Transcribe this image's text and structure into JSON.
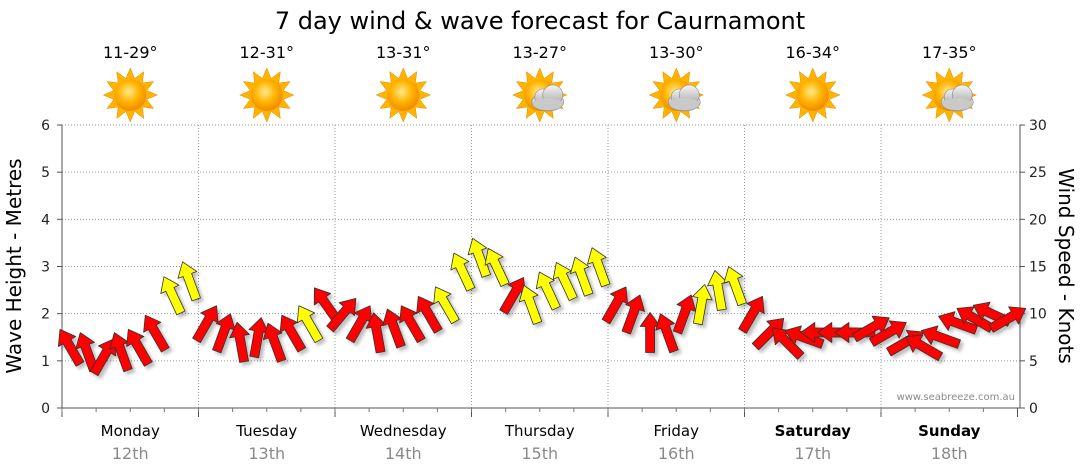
{
  "chart_data": {
    "type": "line",
    "title": "7 day wind & wave forecast for Caurnamont",
    "ylabel_left": "Wave Height - Metres",
    "ylabel_right": "Wind Speed - Knots",
    "left_ylim": [
      0,
      6
    ],
    "left_ticks": [
      "0",
      "1",
      "2",
      "3",
      "4",
      "5",
      "6"
    ],
    "right_ylim": [
      0,
      30
    ],
    "right_ticks": [
      "0",
      "5",
      "10",
      "15",
      "20",
      "25",
      "30"
    ],
    "grid": "dotted",
    "days": [
      {
        "name": "Monday",
        "date": "12th",
        "temp": "11-29°",
        "weather": "sunny-icon",
        "bold": false
      },
      {
        "name": "Tuesday",
        "date": "13th",
        "temp": "12-31°",
        "weather": "sunny-icon",
        "bold": false
      },
      {
        "name": "Wednesday",
        "date": "14th",
        "temp": "13-31°",
        "weather": "sunny-icon",
        "bold": false
      },
      {
        "name": "Thursday",
        "date": "15th",
        "temp": "13-27°",
        "weather": "partly-cloudy-icon",
        "bold": false
      },
      {
        "name": "Friday",
        "date": "16th",
        "temp": "13-30°",
        "weather": "partly-cloudy-icon",
        "bold": false
      },
      {
        "name": "Saturday",
        "date": "17th",
        "temp": "16-34°",
        "weather": "sunny-icon",
        "bold": true
      },
      {
        "name": "Sunday",
        "date": "18th",
        "temp": "17-35°",
        "weather": "partly-cloudy-icon",
        "bold": true
      }
    ],
    "wind_series": {
      "units": "knots",
      "points_per_day": 8,
      "x_day_fraction": [
        0.0,
        0.125,
        0.25,
        0.375,
        0.5,
        0.625,
        0.75,
        0.875,
        1.0,
        1.125,
        1.25,
        1.375,
        1.5,
        1.625,
        1.75,
        1.875,
        2.0,
        2.125,
        2.25,
        2.375,
        2.5,
        2.625,
        2.75,
        2.875,
        3.0,
        3.125,
        3.25,
        3.375,
        3.5,
        3.625,
        3.75,
        3.875,
        4.0,
        4.125,
        4.25,
        4.375,
        4.5,
        4.625,
        4.75,
        4.875,
        5.0,
        5.125,
        5.25,
        5.375,
        5.5,
        5.625,
        5.75,
        5.875,
        6.0,
        6.125,
        6.25,
        6.375,
        6.5,
        6.625,
        6.75,
        6.875
      ],
      "speed": [
        6.5,
        6,
        5.5,
        6,
        6.5,
        8,
        12,
        13.5,
        9,
        8,
        7,
        7.5,
        7,
        8,
        9,
        11,
        10,
        9,
        8,
        8.5,
        9,
        10,
        11,
        14.5,
        16,
        15,
        12,
        11,
        12.5,
        13.5,
        14,
        15,
        11,
        10,
        8,
        8,
        10,
        11,
        12.5,
        13,
        10,
        8,
        7,
        7.5,
        8,
        8,
        8,
        8.5,
        8,
        7,
        6.5,
        7.5,
        9,
        9.5,
        10,
        9.5
      ],
      "direction_deg": [
        30,
        20,
        330,
        20,
        30,
        30,
        25,
        20,
        330,
        340,
        10,
        350,
        20,
        30,
        30,
        35,
        320,
        330,
        10,
        20,
        30,
        30,
        30,
        25,
        20,
        25,
        330,
        20,
        25,
        25,
        20,
        20,
        330,
        340,
        0,
        20,
        340,
        350,
        10,
        20,
        330,
        315,
        45,
        70,
        90,
        90,
        90,
        300,
        300,
        300,
        60,
        70,
        70,
        60,
        65,
        300
      ],
      "color": [
        "red",
        "red",
        "red",
        "red",
        "red",
        "red",
        "yellow",
        "yellow",
        "red",
        "red",
        "red",
        "red",
        "red",
        "red",
        "yellow",
        "red",
        "red",
        "red",
        "red",
        "red",
        "red",
        "red",
        "yellow",
        "yellow",
        "yellow",
        "yellow",
        "red",
        "yellow",
        "yellow",
        "yellow",
        "yellow",
        "yellow",
        "red",
        "red",
        "red",
        "red",
        "red",
        "yellow",
        "yellow",
        "yellow",
        "red",
        "red",
        "red",
        "red",
        "red",
        "red",
        "red",
        "red",
        "red",
        "red",
        "red",
        "red",
        "red",
        "red",
        "red",
        "red"
      ]
    },
    "colors": {
      "strong_wind": "#ff0000",
      "moderate_wind": "#ffff00",
      "arrow_outline": "#333333"
    }
  },
  "watermark": "www.seabreeze.com.au"
}
